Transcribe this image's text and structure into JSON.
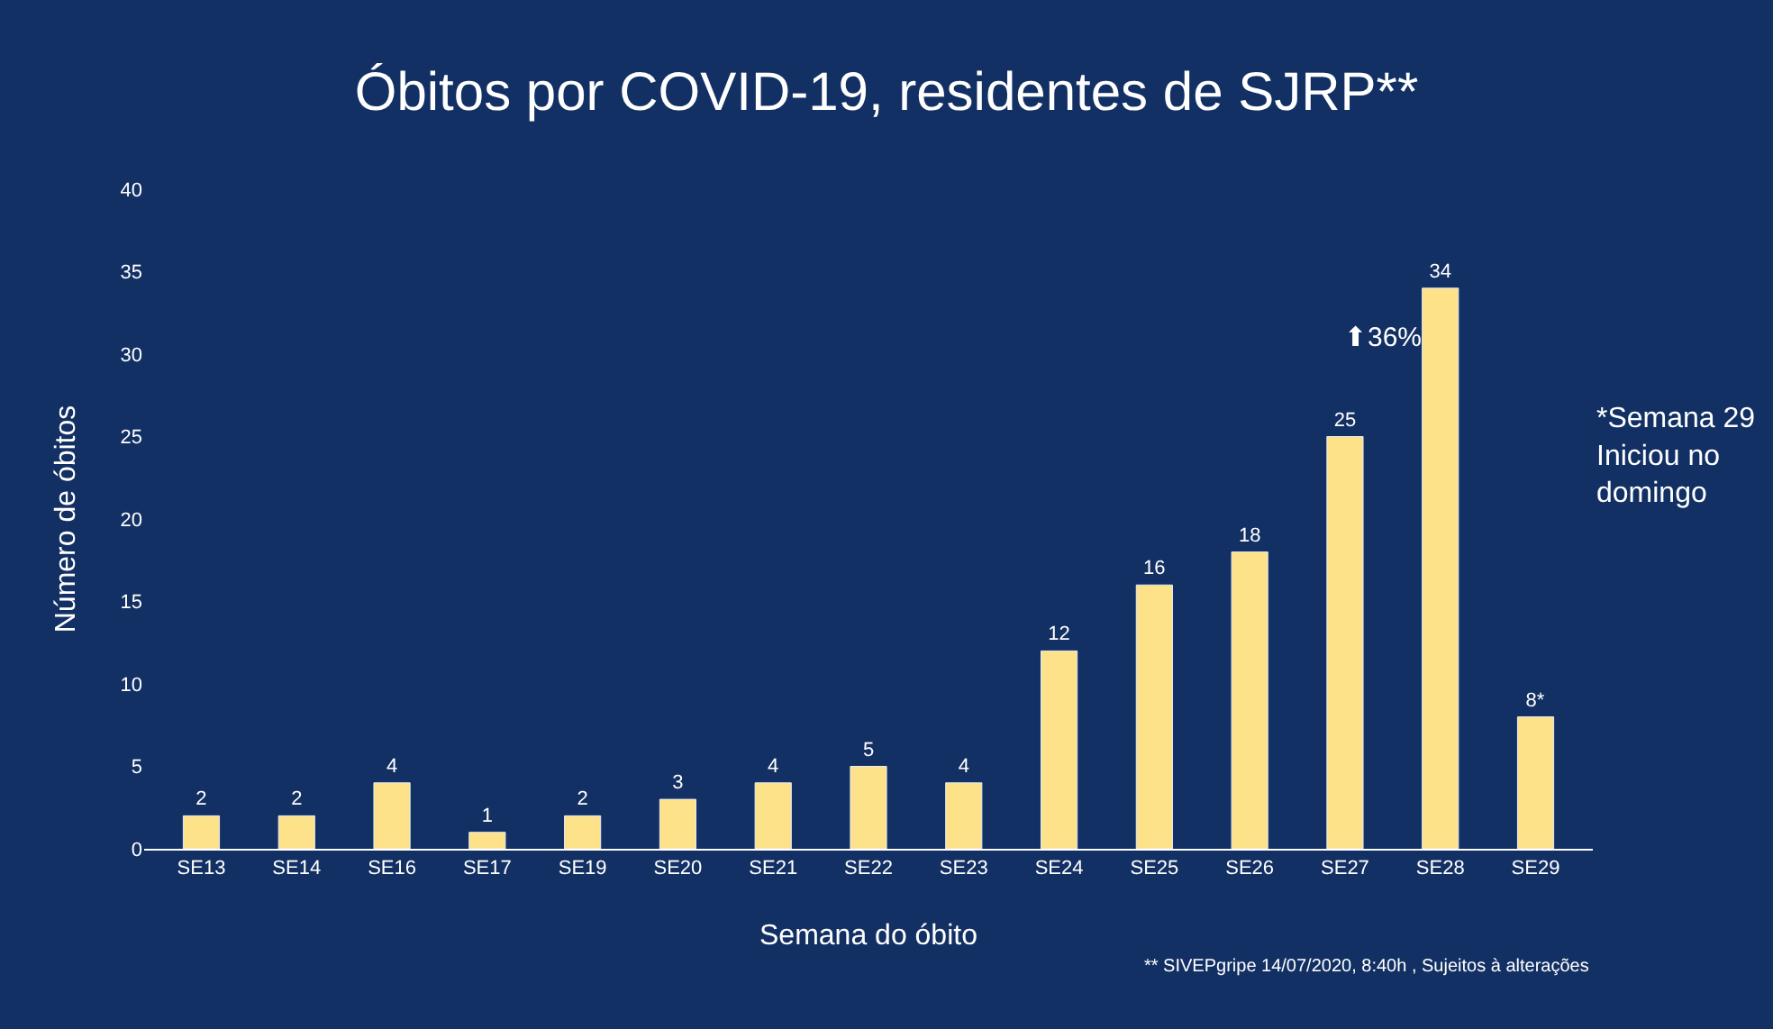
{
  "chart_data": {
    "type": "bar",
    "title": "Óbitos por COVID-19, residentes de SJRP**",
    "xlabel": "Semana do óbito",
    "ylabel": "Número de óbitos",
    "categories": [
      "SE13",
      "SE14",
      "SE16",
      "SE17",
      "SE19",
      "SE20",
      "SE21",
      "SE22",
      "SE23",
      "SE24",
      "SE25",
      "SE26",
      "SE27",
      "SE28",
      "SE29"
    ],
    "values": [
      2,
      2,
      4,
      1,
      2,
      3,
      4,
      5,
      4,
      12,
      16,
      18,
      25,
      34,
      8
    ],
    "value_labels": [
      "2",
      "2",
      "4",
      "1",
      "2",
      "3",
      "4",
      "5",
      "4",
      "12",
      "16",
      "18",
      "25",
      "34",
      "8*"
    ],
    "color": "#fde28a",
    "ylim": [
      0,
      40
    ],
    "yticks": [
      0,
      5,
      10,
      15,
      20,
      25,
      30,
      35,
      40
    ],
    "grid": false,
    "annotations": [
      "⬆36%",
      "*Semana 29\nIniciou no\ndomingo",
      "** SIVEPgripe 14/07/2020, 8:40h , Sujeitos à alterações"
    ]
  }
}
